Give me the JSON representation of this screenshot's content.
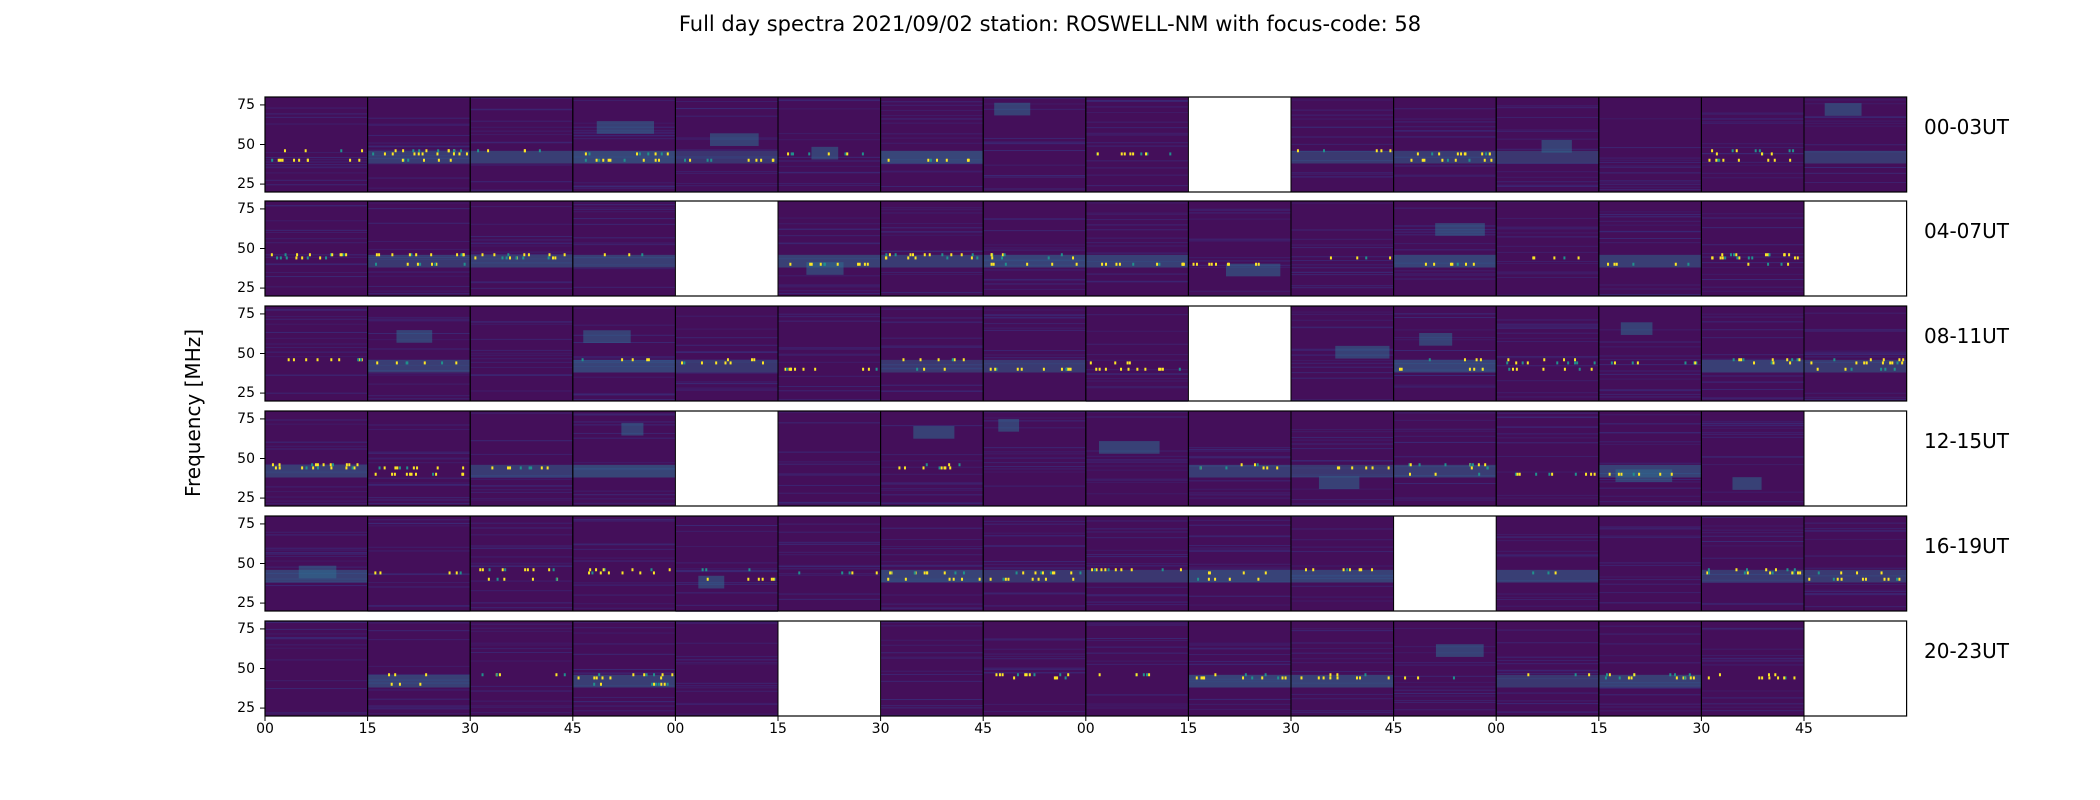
{
  "chart_data": {
    "type": "heatmap",
    "title": "Full day spectra 2021/09/02 station: ROSWELL-NM with focus-code: 58",
    "ylabel": "Frequency [MHz]",
    "xlabel": "",
    "colormap": "viridis",
    "row_labels": [
      "00-03UT",
      "04-07UT",
      "08-11UT",
      "12-15UT",
      "16-19UT",
      "20-23UT"
    ],
    "y_ticks": [
      25,
      50,
      75
    ],
    "ylim": [
      20,
      80
    ],
    "x_tick_labels": [
      "00",
      "15",
      "30",
      "45",
      "00",
      "15",
      "30",
      "45",
      "00",
      "15",
      "30",
      "45",
      "00",
      "15",
      "30",
      "45"
    ],
    "panels_per_row": 16,
    "panel_minutes": 15,
    "missing_panels": [
      [
        0,
        9
      ],
      [
        1,
        4,
        15
      ],
      [
        2,
        9
      ],
      [
        3,
        4,
        15
      ],
      [
        4,
        11
      ],
      [
        5,
        5,
        15
      ]
    ]
  },
  "colors": {
    "background": "#440f5a",
    "low": "#3b2b78",
    "mid": "#2f6c8e",
    "high": "#21918c",
    "peak": "#fde725",
    "missing": "#ffffff"
  }
}
